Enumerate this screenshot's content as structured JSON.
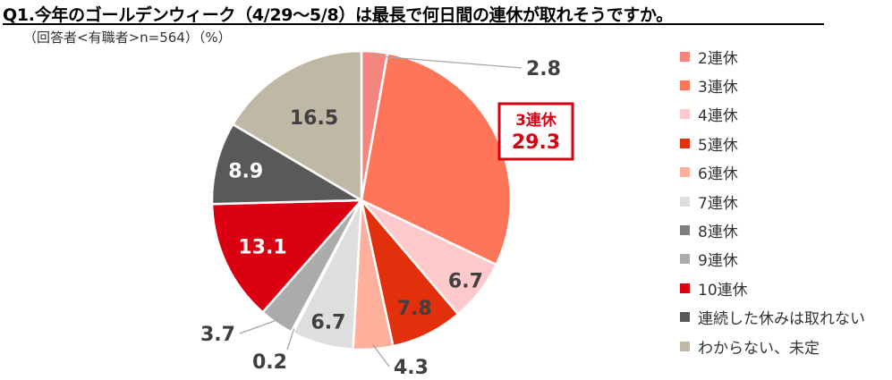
{
  "chart_data": {
    "type": "pie",
    "title": "Q1.今年のゴールデンウィーク（4/29～5/8）は最長で何日間の連休が取れそうですか。",
    "subtitle": "（回答者<有職者>n=564）（%）",
    "legend_position": "right",
    "start_angle_deg": 0,
    "direction": "clockwise",
    "slices": [
      {
        "label": "2連休",
        "value": 2.8,
        "value_text": "2.8",
        "color": "#F4857F"
      },
      {
        "label": "3連休",
        "value": 29.3,
        "value_text": "29.3",
        "color": "#FF7559",
        "callout": "3連休"
      },
      {
        "label": "4連休",
        "value": 6.7,
        "value_text": "6.7",
        "color": "#FFC8CB"
      },
      {
        "label": "5連休",
        "value": 7.8,
        "value_text": "7.8",
        "color": "#E22F0C"
      },
      {
        "label": "6連休",
        "value": 4.3,
        "value_text": "4.3",
        "color": "#FFB09D"
      },
      {
        "label": "7連休",
        "value": 6.7,
        "value_text": "6.7",
        "color": "#DEDEDE"
      },
      {
        "label": "8連休",
        "value": 0.2,
        "value_text": "0.2",
        "color": "#7F7F7F"
      },
      {
        "label": "9連休",
        "value": 3.7,
        "value_text": "3.7",
        "color": "#ABABAB"
      },
      {
        "label": "10連休",
        "value": 13.1,
        "value_text": "13.1",
        "color": "#DA0012"
      },
      {
        "label": "連続した休みは取れない",
        "value": 8.9,
        "value_text": "8.9",
        "color": "#595959"
      },
      {
        "label": "わからない、未定",
        "value": 16.5,
        "value_text": "16.5",
        "color": "#BFB8A5"
      }
    ]
  },
  "colors": {
    "callout_border": "#DA0012",
    "callout_text": "#DA0012",
    "label_dark": "#404040",
    "label_light": "#ffffff",
    "leader_line": "#A6A6A6"
  }
}
